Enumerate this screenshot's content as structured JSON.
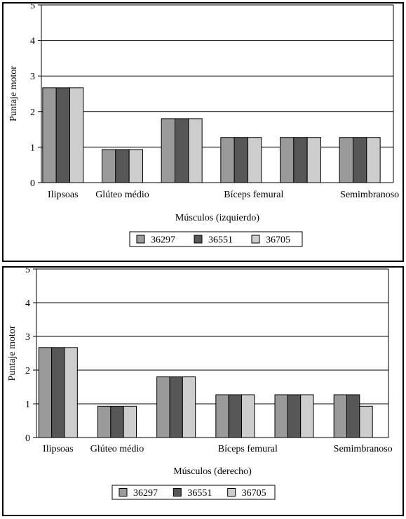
{
  "chart_data": [
    {
      "type": "bar",
      "title": "",
      "xlabel": "Músculos (izquierdo)",
      "ylabel": "Puntaje motor",
      "ylim": [
        0,
        5
      ],
      "yticks": [
        "0",
        "1",
        "2",
        "3",
        "4",
        "5"
      ],
      "grid": true,
      "legend_position": "bottom-center",
      "categories": [
        "Ilipsoas",
        "Glúteo médio",
        "",
        "Bíceps femural",
        "",
        "Semimbranoso"
      ],
      "series": [
        {
          "name": "36297",
          "color": "#9a9a9a",
          "values": [
            2.67,
            0.93,
            1.8,
            1.27,
            1.27,
            1.27
          ]
        },
        {
          "name": "36551",
          "color": "#575757",
          "values": [
            2.67,
            0.93,
            1.8,
            1.27,
            1.27,
            1.27
          ]
        },
        {
          "name": "36705",
          "color": "#cdcdcd",
          "values": [
            2.67,
            0.93,
            1.8,
            1.27,
            1.27,
            1.27
          ]
        }
      ]
    },
    {
      "type": "bar",
      "title": "",
      "xlabel": "Músculos (derecho)",
      "ylabel": "Puntaje motor",
      "ylim": [
        0,
        5
      ],
      "yticks": [
        "0",
        "1",
        "2",
        "3",
        "4",
        "5"
      ],
      "grid": true,
      "legend_position": "bottom-center",
      "categories": [
        "Ilipsoas",
        "Glúteo médio",
        "",
        "Bíceps femural",
        "",
        "Semimbranoso"
      ],
      "series": [
        {
          "name": "36297",
          "color": "#9a9a9a",
          "values": [
            2.67,
            0.93,
            1.8,
            1.27,
            1.27,
            1.27
          ]
        },
        {
          "name": "36551",
          "color": "#575757",
          "values": [
            2.67,
            0.93,
            1.8,
            1.27,
            1.27,
            1.27
          ]
        },
        {
          "name": "36705",
          "color": "#cdcdcd",
          "values": [
            2.67,
            0.93,
            1.8,
            1.27,
            1.27,
            0.93
          ]
        }
      ]
    }
  ]
}
